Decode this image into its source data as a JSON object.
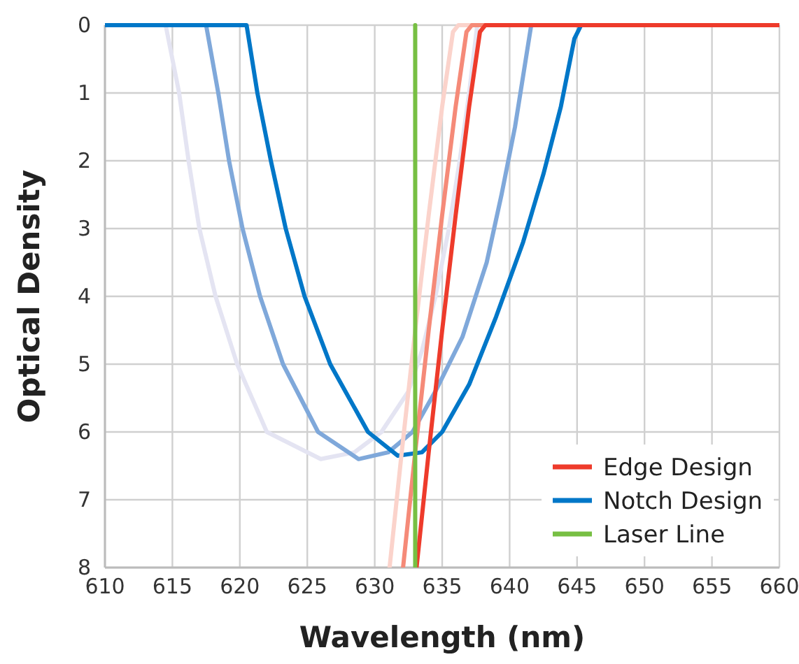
{
  "chart_data": {
    "type": "line",
    "xlabel": "Wavelength (nm)",
    "ylabel": "Optical Density",
    "xlim": [
      610,
      660
    ],
    "xticks": [
      610,
      615,
      620,
      625,
      630,
      635,
      640,
      645,
      650,
      655,
      660
    ],
    "ylim": [
      8,
      0
    ],
    "yticks": [
      0,
      1,
      2,
      3,
      4,
      5,
      6,
      7,
      8
    ],
    "grid": true,
    "legend": "bottom right",
    "line_style": "solid",
    "marker": "none",
    "series": [
      {
        "color": "#e4e4f2",
        "x": [
          610,
          614.5,
          615.5,
          616.2,
          617,
          618.2,
          619.8,
          622,
          626,
          628.5,
          630.5,
          632.5,
          633.5,
          634.5,
          635.5,
          636.3,
          637,
          637.6,
          660
        ],
        "values": [
          0,
          0,
          1,
          2,
          3,
          4,
          5,
          6,
          6.4,
          6.3,
          6,
          5.4,
          4.8,
          4,
          3,
          2,
          1,
          0,
          0
        ]
      },
      {
        "color": "#7fa8da",
        "x": [
          610,
          617.5,
          618.4,
          619.2,
          620.2,
          621.5,
          623.2,
          625.8,
          628.8,
          631,
          632.8,
          634.5,
          636.5,
          638.3,
          639.4,
          640.4,
          641.2,
          641.6,
          660
        ],
        "values": [
          0,
          0,
          1,
          2,
          3,
          4,
          5,
          6,
          6.4,
          6.3,
          6,
          5.4,
          4.6,
          3.5,
          2.5,
          1.5,
          0.5,
          0,
          0
        ]
      },
      {
        "name": "Notch Design",
        "color": "#0077c8",
        "x": [
          610,
          620.5,
          621.3,
          622.3,
          623.4,
          624.8,
          626.7,
          629.5,
          631.7,
          633.5,
          635,
          637,
          639,
          641,
          642.5,
          643.8,
          644.8,
          645.3,
          660
        ],
        "values": [
          0,
          0,
          1,
          2,
          3,
          4,
          5,
          6,
          6.35,
          6.3,
          6,
          5.3,
          4.3,
          3.2,
          2.2,
          1.2,
          0.2,
          0,
          0
        ]
      },
      {
        "color": "#fbd3cb",
        "x": [
          631.1,
          632,
          633,
          634,
          635,
          635.8,
          636.2,
          660
        ],
        "values": [
          8,
          6.3,
          4.5,
          2.8,
          1.2,
          0.1,
          0,
          0
        ]
      },
      {
        "color": "#f58a78",
        "x": [
          632.1,
          633,
          634,
          635,
          636,
          636.8,
          637.2,
          660
        ],
        "values": [
          8,
          6.3,
          4.5,
          2.8,
          1.2,
          0.1,
          0,
          0
        ]
      },
      {
        "name": "Edge Design",
        "color": "#ee3b2b",
        "x": [
          633.1,
          634,
          635,
          636,
          637,
          637.8,
          638.2,
          660
        ],
        "values": [
          8,
          6.3,
          4.5,
          2.8,
          1.2,
          0.1,
          0,
          0
        ]
      },
      {
        "name": "Laser Line",
        "color": "#77bf43",
        "x": [
          633,
          633
        ],
        "values": [
          0,
          8
        ]
      }
    ]
  }
}
